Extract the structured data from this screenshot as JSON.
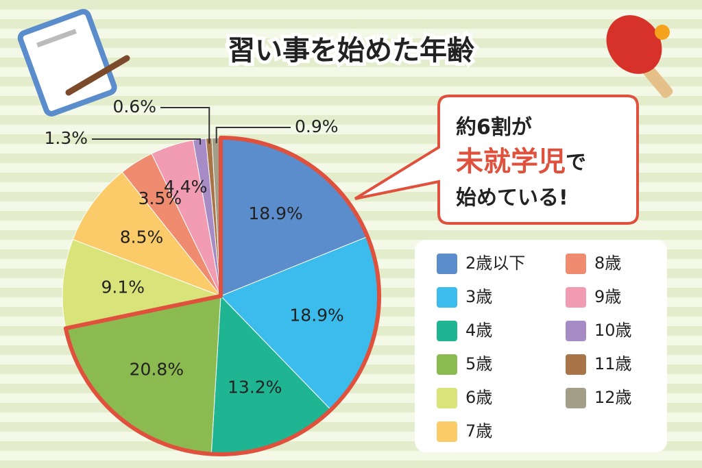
{
  "chart_data": {
    "type": "pie",
    "title": "習い事を始めた年齢",
    "categories": [
      "2歳以下",
      "3歳",
      "4歳",
      "5歳",
      "6歳",
      "7歳",
      "8歳",
      "9歳",
      "10歳",
      "11歳",
      "12歳"
    ],
    "series": [
      {
        "values": [
          18.9,
          18.9,
          13.2,
          20.8,
          9.1,
          8.5,
          3.5,
          4.4,
          1.3,
          0.6,
          0.9
        ],
        "value_labels": [
          "18.9%",
          "18.9%",
          "13.2%",
          "20.8%",
          "9.1%",
          "8.5%",
          "3.5%",
          "4.4%",
          "1.3%",
          "0.6%",
          "0.9%"
        ],
        "colors": [
          "#5b8ccc",
          "#3bbcec",
          "#1fb592",
          "#8bbb50",
          "#d8e37a",
          "#fbcb6a",
          "#ef8c6f",
          "#f29cb4",
          "#a68bc4",
          "#a87448",
          "#a39e88"
        ]
      }
    ],
    "outlined_slices": 4,
    "outline_color": "#e0513d",
    "annotation": {
      "line1": "約6割が",
      "highlight": "未就学児",
      "after": "で",
      "line3": "始めている!"
    }
  }
}
